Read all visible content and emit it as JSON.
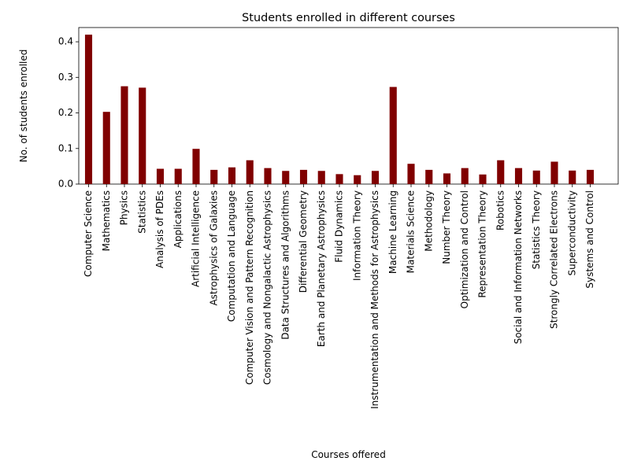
{
  "chart_data": {
    "type": "bar",
    "title": "Students enrolled in different courses",
    "xlabel": "Courses offered",
    "ylabel": "No. of students enrolled",
    "ylim": [
      0,
      0.44
    ],
    "yticks": [
      "0.0",
      "0.1",
      "0.2",
      "0.3",
      "0.4"
    ],
    "ytick_values": [
      0.0,
      0.1,
      0.2,
      0.3,
      0.4
    ],
    "bar_color": "#800000",
    "grid": false,
    "categories": [
      "Computer Science",
      "Mathematics",
      "Physics",
      "Statistics",
      "Analysis of PDEs",
      "Applications",
      "Artificial Intelligence",
      "Astrophysics of Galaxies",
      "Computation and Language",
      "Computer Vision and Pattern Recognition",
      "Cosmology and Nongalactic Astrophysics",
      "Data Structures and Algorithms",
      "Differential Geometry",
      "Earth and Planetary Astrophysics",
      "Fluid Dynamics",
      "Information Theory",
      "Instrumentation and Methods for Astrophysics",
      "Machine Learning",
      "Materials Science",
      "Methodology",
      "Number Theory",
      "Optimization and Control",
      "Representation Theory",
      "Robotics",
      "Social and Information Networks",
      "Statistics Theory",
      "Strongly Correlated Electrons",
      "Superconductivity",
      "Systems and Control"
    ],
    "values": [
      0.42,
      0.203,
      0.275,
      0.271,
      0.043,
      0.043,
      0.099,
      0.04,
      0.047,
      0.067,
      0.045,
      0.037,
      0.04,
      0.037,
      0.028,
      0.025,
      0.037,
      0.273,
      0.057,
      0.04,
      0.03,
      0.045,
      0.027,
      0.067,
      0.045,
      0.038,
      0.063,
      0.038,
      0.04
    ]
  }
}
